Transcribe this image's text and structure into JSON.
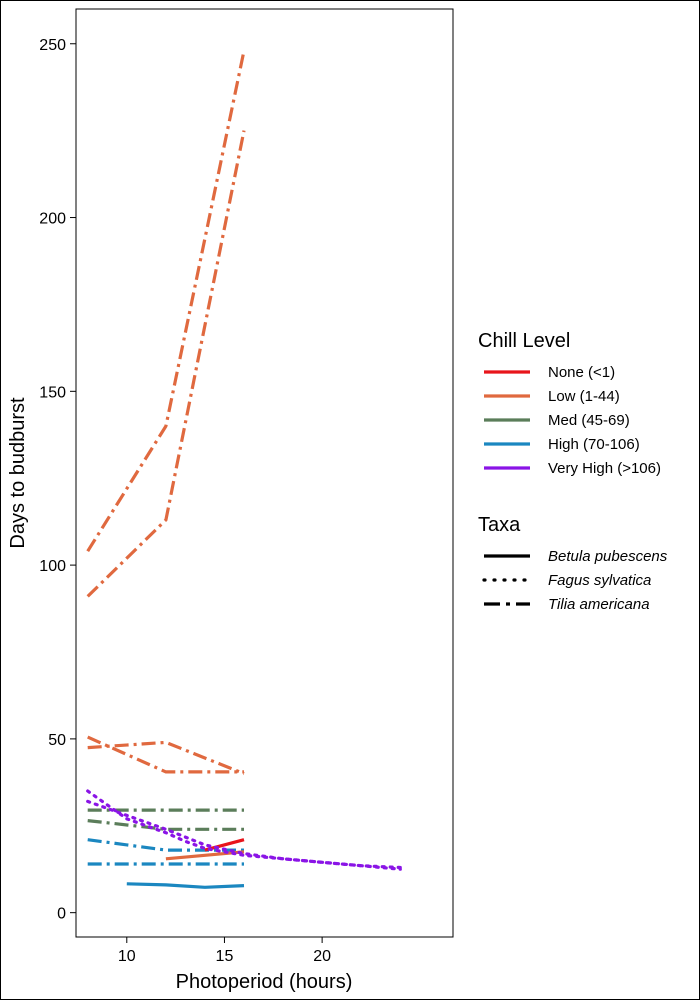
{
  "chart_data": {
    "type": "line",
    "xlabel": "Photoperiod (hours)",
    "ylabel": "Days to budburst",
    "xlim": [
      7.4,
      26.7
    ],
    "ylim": [
      -7,
      260
    ],
    "x_ticks": [
      10,
      15,
      20
    ],
    "y_ticks": [
      0,
      50,
      100,
      150,
      200,
      250
    ],
    "grid": false,
    "legend_placement": "right",
    "legend": {
      "chill_title": "Chill Level",
      "chill_levels": [
        {
          "key": "none",
          "label": "None (<1)",
          "color": "#e8151b"
        },
        {
          "key": "low",
          "label": "Low (1-44)",
          "color": "#e0693f"
        },
        {
          "key": "med",
          "label": "Med (45-69)",
          "color": "#5b7d5a"
        },
        {
          "key": "high",
          "label": "High (70-106)",
          "color": "#1b87c0"
        },
        {
          "key": "veryhigh",
          "label": "Very High (>106)",
          "color": "#8a14e6"
        }
      ],
      "taxa_title": "Taxa",
      "taxa": [
        {
          "key": "betula",
          "label": "Betula pubescens",
          "dash": "solid"
        },
        {
          "key": "fagus",
          "label": "Fagus sylvatica",
          "dash": "dotted"
        },
        {
          "key": "tilia",
          "label": "Tilia americana",
          "dash": "dashdot"
        }
      ]
    },
    "series": [
      {
        "chill": "low",
        "taxa": "tilia",
        "x": [
          8,
          12,
          16
        ],
        "y": [
          104,
          140,
          248
        ]
      },
      {
        "chill": "low",
        "taxa": "tilia",
        "x": [
          8,
          12,
          16
        ],
        "y": [
          91,
          113,
          225
        ]
      },
      {
        "chill": "low",
        "taxa": "tilia",
        "x": [
          8,
          12,
          16
        ],
        "y": [
          47.5,
          49,
          40
        ]
      },
      {
        "chill": "low",
        "taxa": "tilia",
        "x": [
          8,
          12,
          16
        ],
        "y": [
          50.5,
          40.5,
          40.5
        ]
      },
      {
        "chill": "med",
        "taxa": "tilia",
        "x": [
          8,
          12,
          16
        ],
        "y": [
          29.5,
          29.5,
          29.5
        ]
      },
      {
        "chill": "med",
        "taxa": "tilia",
        "x": [
          8,
          12,
          16
        ],
        "y": [
          26.5,
          24,
          24
        ]
      },
      {
        "chill": "high",
        "taxa": "tilia",
        "x": [
          8,
          12,
          16
        ],
        "y": [
          21,
          18,
          18
        ]
      },
      {
        "chill": "high",
        "taxa": "tilia",
        "x": [
          8,
          12,
          16
        ],
        "y": [
          14,
          14,
          14
        ]
      },
      {
        "chill": "high",
        "taxa": "betula",
        "x": [
          10,
          12,
          14,
          16
        ],
        "y": [
          8.3,
          8,
          7.3,
          7.8
        ]
      },
      {
        "chill": "low",
        "taxa": "betula",
        "x": [
          12,
          14,
          16
        ],
        "y": [
          15.5,
          16.5,
          17.5
        ]
      },
      {
        "chill": "none",
        "taxa": "betula",
        "x": [
          14,
          16
        ],
        "y": [
          18,
          21
        ]
      },
      {
        "chill": "veryhigh",
        "taxa": "fagus",
        "x": [
          8,
          9,
          10,
          11,
          12,
          13,
          14,
          16,
          18,
          20,
          22,
          24
        ],
        "y": [
          35,
          31,
          27,
          25,
          23,
          20.5,
          18.5,
          16.5,
          15.5,
          14.5,
          13.5,
          12.5
        ]
      },
      {
        "chill": "veryhigh",
        "taxa": "fagus",
        "x": [
          8,
          10,
          12,
          14,
          16,
          18,
          20,
          22,
          24
        ],
        "y": [
          32,
          28,
          24,
          19.5,
          17,
          15.5,
          14.5,
          13.5,
          13
        ]
      }
    ]
  }
}
